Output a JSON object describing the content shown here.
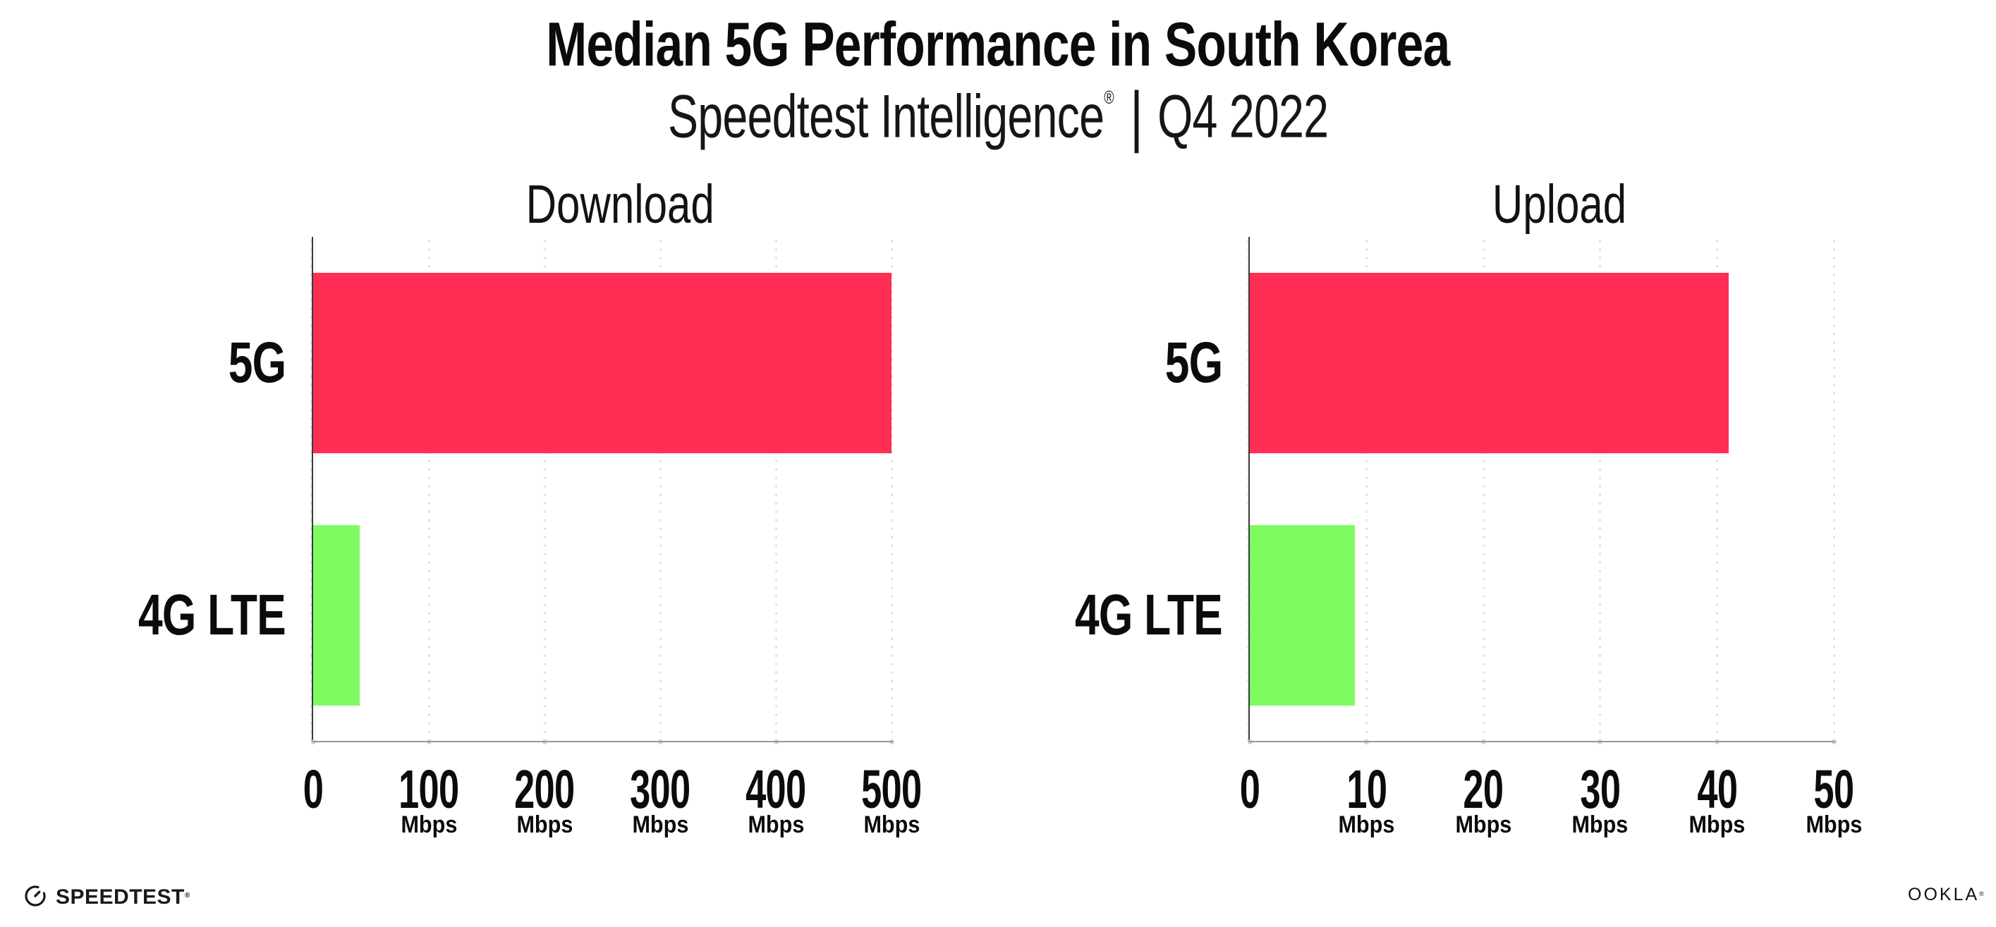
{
  "header": {
    "title": "Median 5G Performance in South Korea",
    "subtitle_brand": "Speedtest Intelligence",
    "subtitle_reg": "®",
    "subtitle_separator": "|",
    "subtitle_period": "Q4 2022"
  },
  "chart_data": [
    {
      "type": "bar",
      "orientation": "horizontal",
      "title": "Download",
      "categories": [
        "5G",
        "4G LTE"
      ],
      "values": [
        500,
        40
      ],
      "unit": "Mbps",
      "xticks": [
        0,
        100,
        200,
        300,
        400,
        500
      ],
      "xlim": [
        0,
        500
      ],
      "grid": "dotted-vertical",
      "legend": "none",
      "bar_colors": [
        "#FF2E55",
        "#7FFB62"
      ]
    },
    {
      "type": "bar",
      "orientation": "horizontal",
      "title": "Upload",
      "categories": [
        "5G",
        "4G LTE"
      ],
      "values": [
        41,
        9
      ],
      "unit": "Mbps",
      "xticks": [
        0,
        10,
        20,
        30,
        40,
        50
      ],
      "xlim": [
        0,
        50
      ],
      "grid": "dotted-vertical",
      "legend": "none",
      "bar_colors": [
        "#FF2E55",
        "#7FFB62"
      ]
    }
  ],
  "footer": {
    "speedtest_wordmark": "SPEEDTEST",
    "speedtest_mark": "®",
    "ookla_wordmark": "OOKLA",
    "ookla_mark": "®"
  },
  "colors": {
    "background": "#FFFFFF",
    "text": "#0B0B0B",
    "bar_5g": "#FF2E55",
    "bar_4g_lte": "#7FFB62",
    "y_axis_line": "#3A3A3E",
    "x_axis_line": "#97979F",
    "gridline_dots": "#DCDCE6",
    "axis_tick_dots": "#D2D2DE"
  }
}
